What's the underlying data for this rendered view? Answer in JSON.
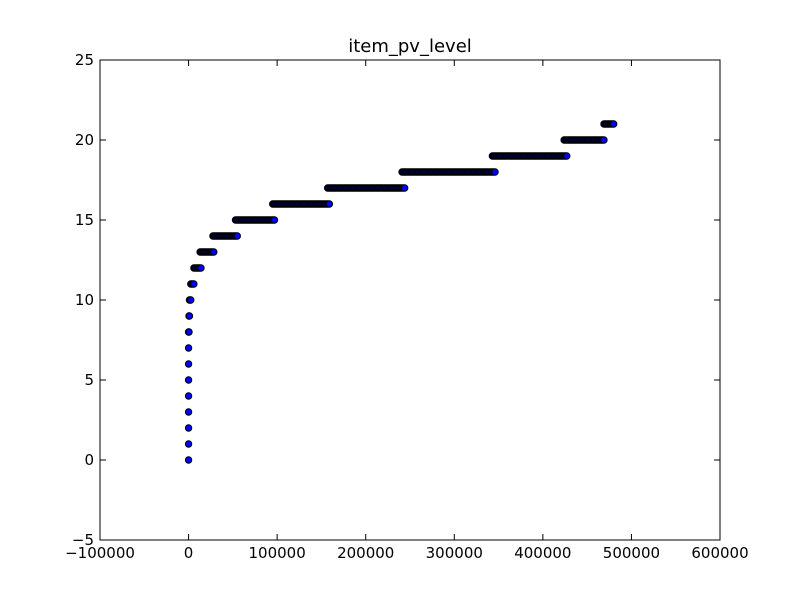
{
  "chart_data": {
    "type": "scatter",
    "title": "item_pv_level",
    "xlabel": "",
    "ylabel": "",
    "xlim": [
      -100000,
      600000
    ],
    "ylim": [
      -5,
      25
    ],
    "xticks": [
      -100000,
      0,
      100000,
      200000,
      300000,
      400000,
      500000,
      600000
    ],
    "yticks": [
      -5,
      0,
      5,
      10,
      15,
      20,
      25
    ],
    "xtick_labels": [
      "−100000",
      "0",
      "100000",
      "200000",
      "300000",
      "400000",
      "500000",
      "600000"
    ],
    "ytick_labels": [
      "−5",
      "0",
      "5",
      "10",
      "15",
      "20",
      "25"
    ],
    "grid": false,
    "legend": "none",
    "marker_color": "#0000ff",
    "marker_edge_color": "#000000",
    "series": [
      {
        "segments": [
          {
            "y": 0,
            "x_min": 0,
            "x_max": 0
          },
          {
            "y": 1,
            "x_min": 0,
            "x_max": 0
          },
          {
            "y": 2,
            "x_min": 0,
            "x_max": 0
          },
          {
            "y": 3,
            "x_min": 0,
            "x_max": 0
          },
          {
            "y": 4,
            "x_min": 0,
            "x_max": 0
          },
          {
            "y": 5,
            "x_min": 0,
            "x_max": 0
          },
          {
            "y": 6,
            "x_min": 0,
            "x_max": 0
          },
          {
            "y": 7,
            "x_min": 0,
            "x_max": 0
          },
          {
            "y": 8,
            "x_min": 0,
            "x_max": 500
          },
          {
            "y": 9,
            "x_min": 500,
            "x_max": 1000
          },
          {
            "y": 10,
            "x_min": 1000,
            "x_max": 2500
          },
          {
            "y": 11,
            "x_min": 2500,
            "x_max": 6000
          },
          {
            "y": 12,
            "x_min": 6000,
            "x_max": 14000
          },
          {
            "y": 13,
            "x_min": 13000,
            "x_max": 28500
          },
          {
            "y": 14,
            "x_min": 27500,
            "x_max": 55000
          },
          {
            "y": 15,
            "x_min": 53000,
            "x_max": 97000
          },
          {
            "y": 16,
            "x_min": 95000,
            "x_max": 159000
          },
          {
            "y": 17,
            "x_min": 157000,
            "x_max": 244000
          },
          {
            "y": 18,
            "x_min": 241000,
            "x_max": 346000
          },
          {
            "y": 19,
            "x_min": 343000,
            "x_max": 427000
          },
          {
            "y": 20,
            "x_min": 424000,
            "x_max": 469000
          },
          {
            "y": 21,
            "x_min": 469000,
            "x_max": 480000
          }
        ]
      }
    ]
  }
}
